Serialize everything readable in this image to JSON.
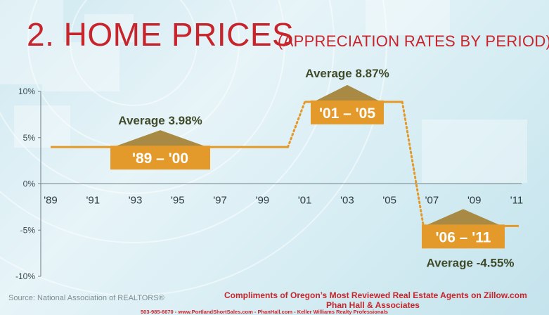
{
  "header": {
    "title": "2. HOME PRICES",
    "subtitle": "(APPRECIATION RATES BY PERIOD)"
  },
  "chart_data": {
    "type": "line",
    "title": "2. HOME PRICES",
    "subtitle": "(APPRECIATION RATES BY PERIOD)",
    "x_tick_labels": [
      "'89",
      "'91",
      "'93",
      "'95",
      "'97",
      "'99",
      "'01",
      "'03",
      "'05",
      "'07",
      "'09",
      "'11"
    ],
    "x_ticks": [
      1989,
      1991,
      1993,
      1995,
      1997,
      1999,
      2001,
      2003,
      2005,
      2007,
      2009,
      2011
    ],
    "y_tick_labels": [
      "10%",
      "5%",
      "0%",
      "-5%",
      "-10%"
    ],
    "y_ticks": [
      10,
      5,
      0,
      -5,
      -10
    ],
    "xlim": [
      1988.7,
      2011.2
    ],
    "ylim": [
      -10,
      10
    ],
    "series": [
      {
        "style": "solid",
        "x": [
          1989,
          2000.2,
          2000.2,
          2001,
          2005.6,
          2006.6,
          2011.1
        ],
        "y": [
          3.98,
          3.98,
          3.98,
          8.87,
          8.87,
          -4.55,
          -4.55
        ],
        "segment_styles": [
          "solid",
          "solid",
          "dotted",
          "solid",
          "dotted",
          "solid"
        ]
      }
    ],
    "periods": [
      {
        "label": "'89 – '00",
        "average_label": "Average 3.98%",
        "average": 3.98,
        "start": 1989,
        "end": 2000
      },
      {
        "label": "'01 – '05",
        "average_label": "Average 8.87%",
        "average": 8.87,
        "start": 2001,
        "end": 2005
      },
      {
        "label": "'06 – '11",
        "average_label": "Average -4.55%",
        "average": -4.55,
        "start": 2006,
        "end": 2011
      }
    ],
    "line_color": "#e39a2a",
    "box_color": "#e39a2a",
    "triangle_color": "#a88a45",
    "average_text_color": "#3f4a2a",
    "axis_color": "#6f7f86",
    "grid": false,
    "legend": "none"
  },
  "footer": {
    "source": "Source: National Association of REALTORS®",
    "credit_line1": "Compliments of Oregon’s Most Reviewed Real Estate Agents on Zillow.com",
    "credit_line2": "Phan Hall & Associates",
    "contact": "503-985-6670  -  www.PortlandShortSales.com  -  PhanHall.com  -  Keller Williams Realty Professionals"
  }
}
